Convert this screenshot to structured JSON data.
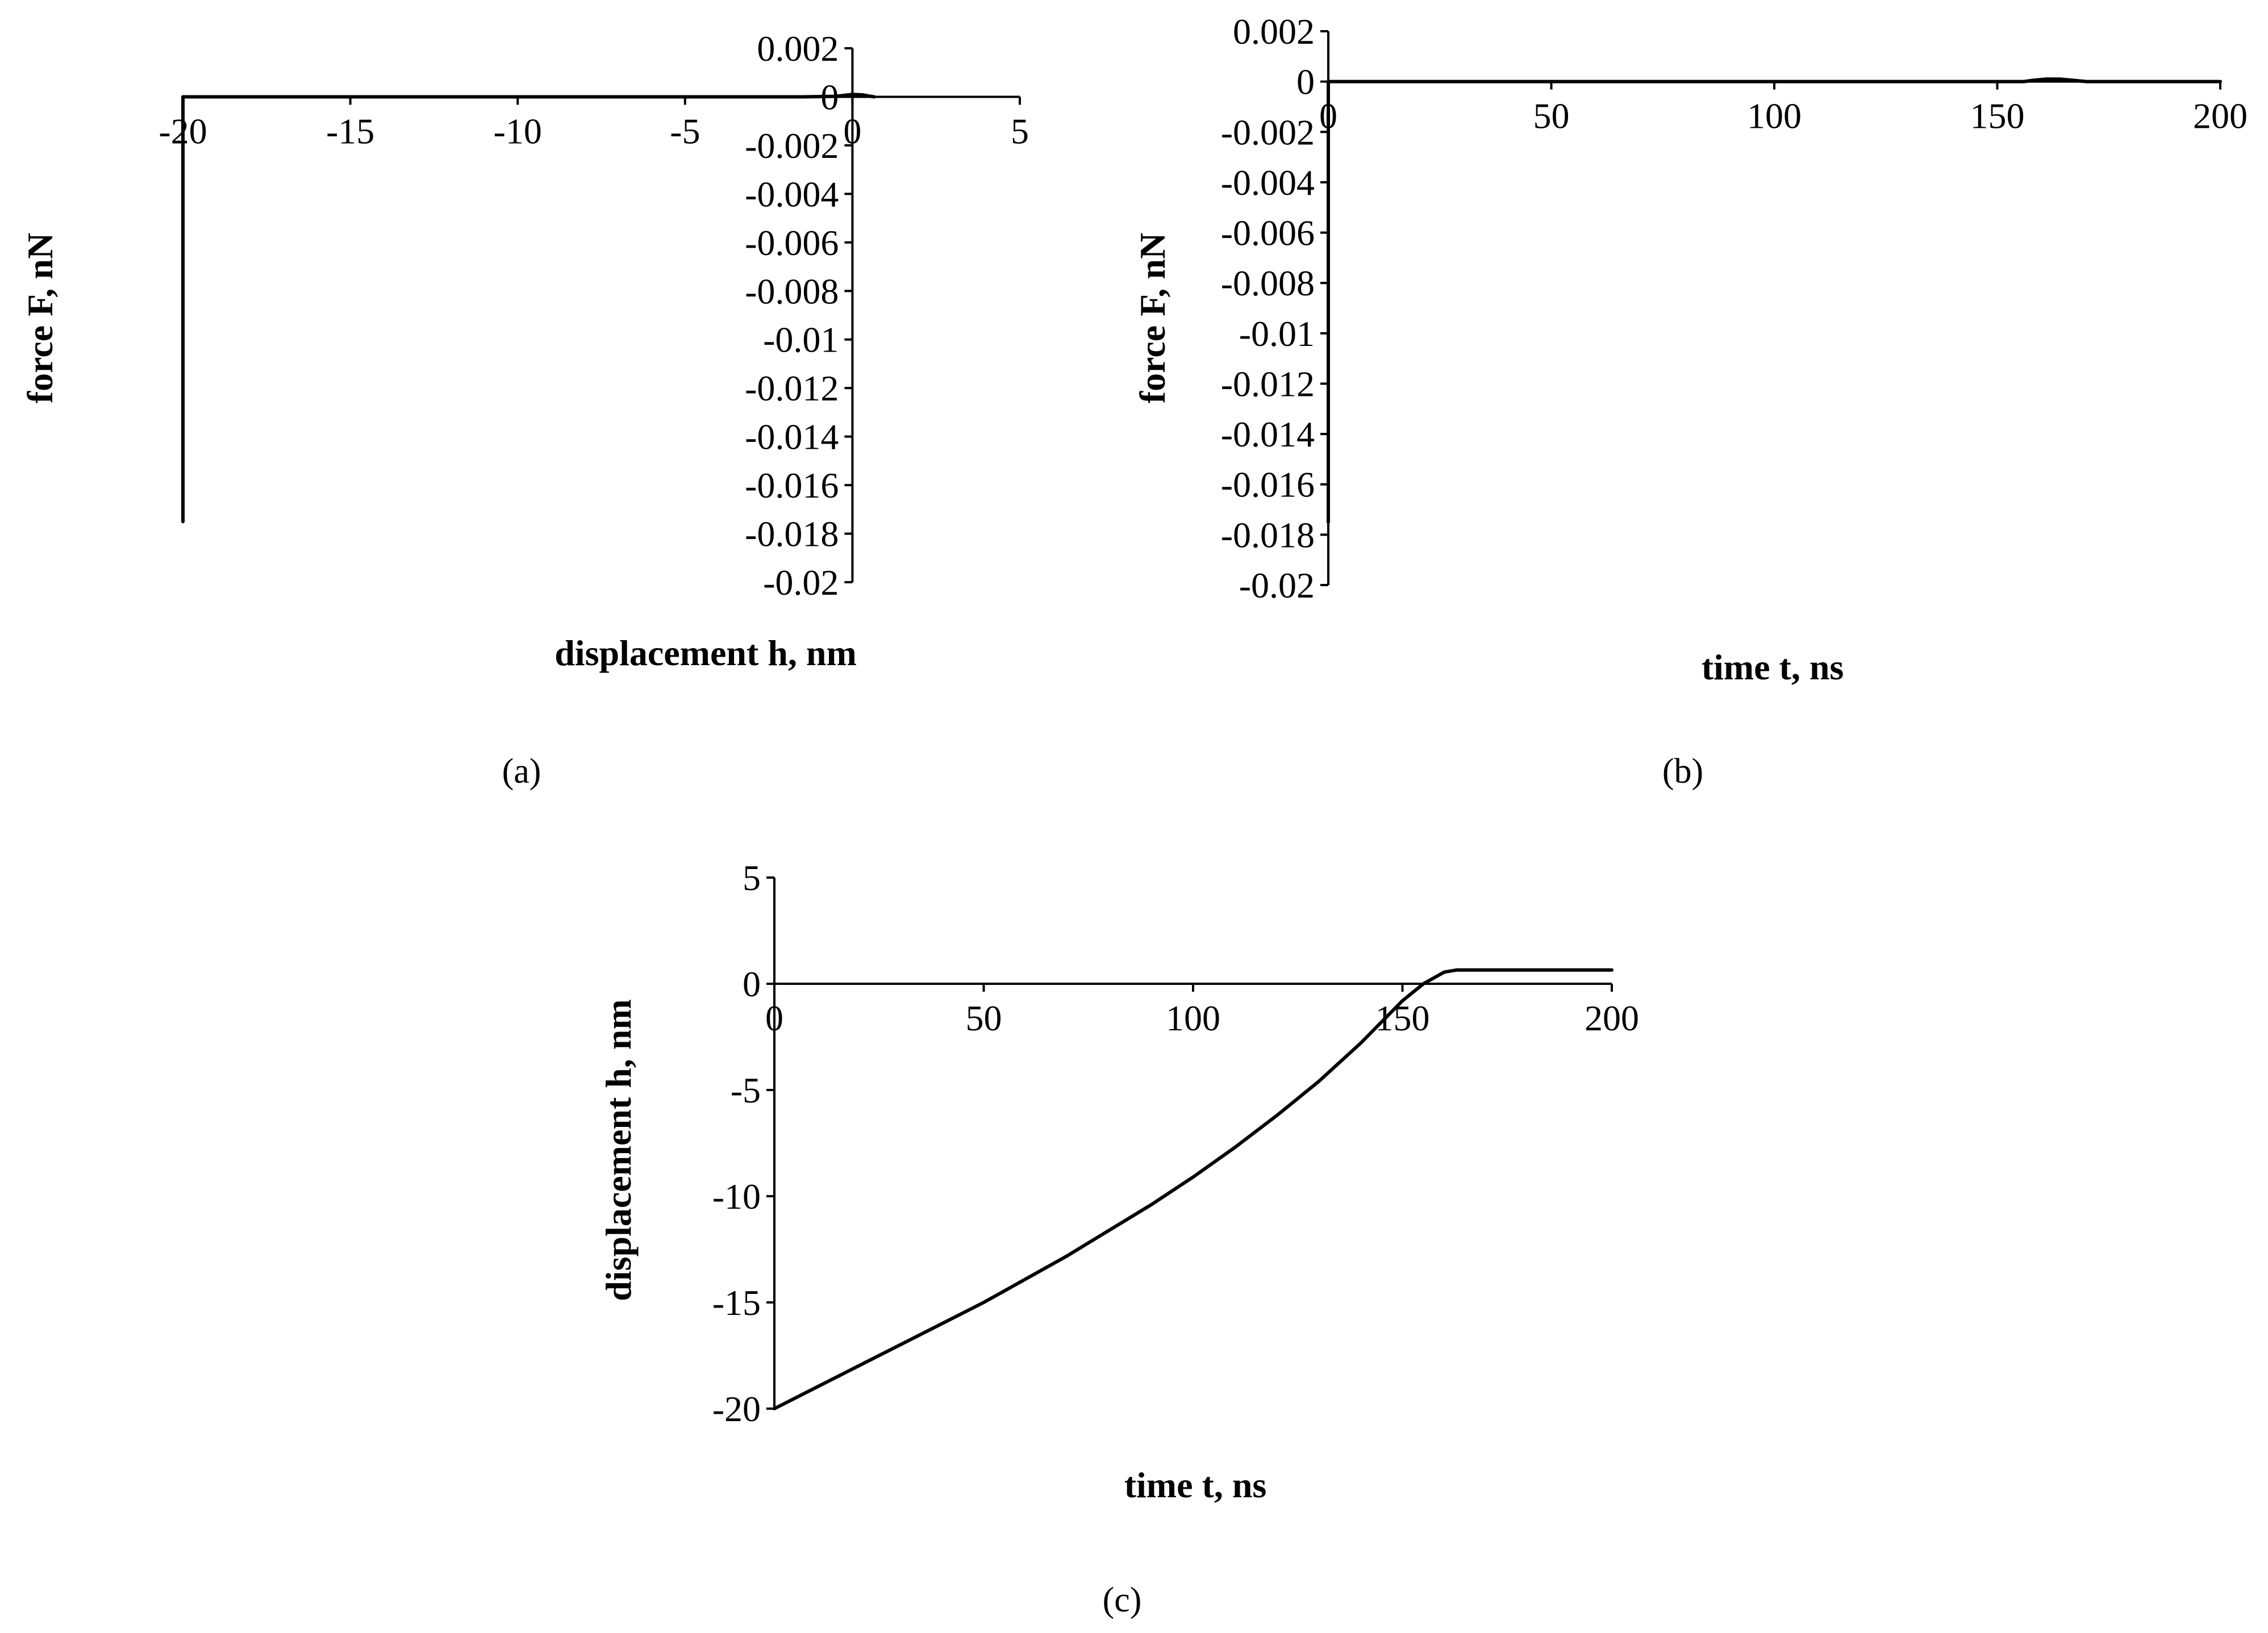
{
  "chart_data": [
    {
      "id": "a",
      "type": "line",
      "panel_label": "(a)",
      "xlabel": "displacement h, nm",
      "ylabel": "force F, nN",
      "xlim": [
        -20,
        5
      ],
      "ylim": [
        -0.02,
        0.002
      ],
      "x_ticks": [
        -20,
        -15,
        -10,
        -5,
        0,
        5
      ],
      "x_tick_labels": [
        "-20",
        "-15",
        "-10",
        "-5",
        "0",
        "5"
      ],
      "y_ticks": [
        0.002,
        0,
        -0.002,
        -0.004,
        -0.006,
        -0.008,
        -0.01,
        -0.012,
        -0.014,
        -0.016,
        -0.018,
        -0.02
      ],
      "y_tick_labels": [
        "0.002",
        "0",
        "-0.002",
        "-0.004",
        "-0.006",
        "-0.008",
        "-0.01",
        "-0.012",
        "-0.014",
        "-0.016",
        "-0.018",
        "-0.02"
      ],
      "grid": false,
      "series": [
        {
          "x": [
            -20,
            -20,
            -19.5,
            -15,
            -10,
            -5,
            -1.5,
            -0.5,
            0,
            0.3,
            0.5,
            0.65
          ],
          "y": [
            -0.0175,
            0,
            0,
            0,
            0,
            0,
            0,
            2e-05,
            0.0001,
            8e-05,
            3e-05,
            0
          ]
        }
      ]
    },
    {
      "id": "b",
      "type": "line",
      "panel_label": "(b)",
      "xlabel": "time t, ns",
      "ylabel": "force F, nN",
      "xlim": [
        0,
        200
      ],
      "ylim": [
        -0.02,
        0.002
      ],
      "x_ticks": [
        0,
        50,
        100,
        150,
        200
      ],
      "x_tick_labels": [
        "0",
        "50",
        "100",
        "150",
        "200"
      ],
      "y_ticks": [
        0.002,
        0,
        -0.002,
        -0.004,
        -0.006,
        -0.008,
        -0.01,
        -0.012,
        -0.014,
        -0.016,
        -0.018,
        -0.02
      ],
      "y_tick_labels": [
        "0.002",
        "0",
        "-0.002",
        "-0.004",
        "-0.006",
        "-0.008",
        "-0.01",
        "-0.012",
        "-0.014",
        "-0.016",
        "-0.018",
        "-0.02"
      ],
      "grid": false,
      "series": [
        {
          "x": [
            0,
            0,
            0.5,
            50,
            100,
            150,
            156,
            158,
            161,
            164,
            167,
            170,
            200
          ],
          "y": [
            -0.0175,
            0,
            0,
            0,
            0,
            0,
            0,
            5e-05,
            0.0001,
            0.0001,
            5e-05,
            0,
            0
          ]
        }
      ]
    },
    {
      "id": "c",
      "type": "line",
      "panel_label": "(c)",
      "xlabel": "time t, ns",
      "ylabel": "displacement h, nm",
      "xlim": [
        0,
        200
      ],
      "ylim": [
        -20,
        5
      ],
      "x_ticks": [
        0,
        50,
        100,
        150,
        200
      ],
      "x_tick_labels": [
        "0",
        "50",
        "100",
        "150",
        "200"
      ],
      "y_ticks": [
        5,
        0,
        -5,
        -10,
        -15,
        -20
      ],
      "y_tick_labels": [
        "5",
        "0",
        "-5",
        "-10",
        "-15",
        "-20"
      ],
      "grid": false,
      "series": [
        {
          "x": [
            0,
            10,
            20,
            30,
            40,
            50,
            60,
            70,
            80,
            90,
            100,
            110,
            120,
            130,
            140,
            150,
            155,
            160,
            163,
            166,
            170,
            180,
            190,
            200
          ],
          "y": [
            -20,
            -19,
            -18,
            -17,
            -16,
            -15,
            -13.9,
            -12.8,
            -11.6,
            -10.4,
            -9.1,
            -7.7,
            -6.2,
            -4.6,
            -2.8,
            -0.8,
            0,
            0.55,
            0.65,
            0.65,
            0.65,
            0.65,
            0.65,
            0.65
          ]
        }
      ]
    }
  ]
}
